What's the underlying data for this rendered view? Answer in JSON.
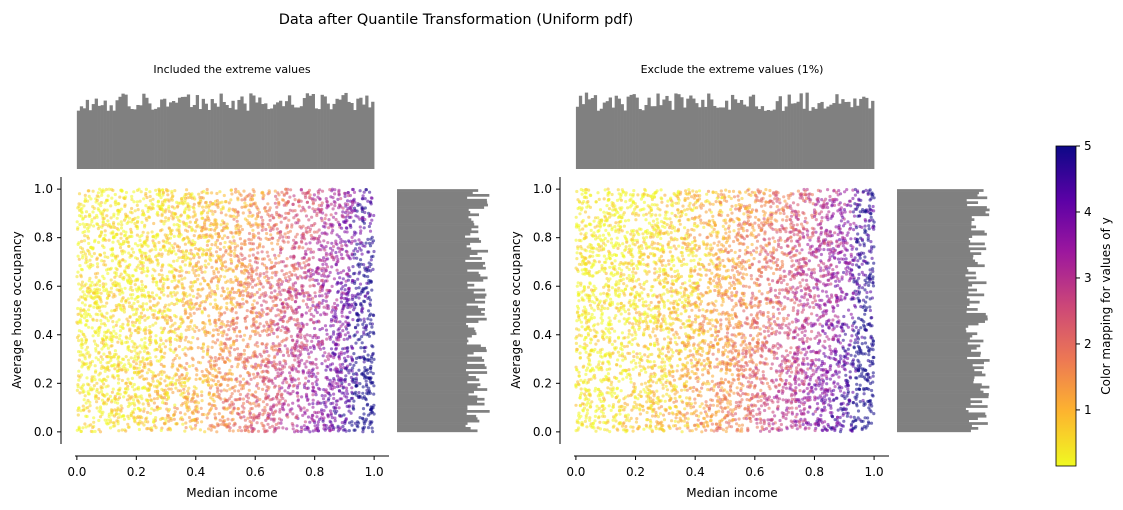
{
  "figure": {
    "title": "Data after Quantile Transformation (Uniform pdf)",
    "colorbar": {
      "label": "Color mapping for values of y",
      "ticks": [
        "1",
        "2",
        "3",
        "4",
        "5"
      ],
      "range": [
        0.15,
        5.0
      ],
      "colormap": "plasma_r",
      "colors": [
        "#f0f921",
        "#fdb42f",
        "#ed7953",
        "#cc4778",
        "#9c179e",
        "#5c01a6",
        "#0d0887"
      ]
    }
  },
  "chart_data": [
    {
      "type": "scatter",
      "title": "Included the extreme values",
      "xlabel": "Median income",
      "ylabel": "Average house occupancy",
      "xlim": [
        -0.05,
        1.05
      ],
      "ylim": [
        -0.05,
        1.05
      ],
      "xticks": [
        "0.0",
        "0.2",
        "0.4",
        "0.6",
        "0.8",
        "1.0"
      ],
      "yticks": [
        "0.0",
        "0.2",
        "0.4",
        "0.6",
        "0.8",
        "1.0"
      ],
      "points": 20640,
      "point_alpha": 0.5,
      "marginal_histograms": {
        "x": {
          "bins": 100,
          "color": "#808080"
        },
        "y": {
          "bins": 100,
          "color": "#808080"
        }
      },
      "x_range": [
        0.0,
        1.0
      ],
      "y_range": [
        0.0,
        1.0
      ]
    },
    {
      "type": "scatter",
      "title": "Exclude the extreme values (1%)",
      "xlabel": "Median income",
      "ylabel": "Average house occupancy",
      "xlim": [
        -0.05,
        1.05
      ],
      "ylim": [
        -0.05,
        1.05
      ],
      "xticks": [
        "0.0",
        "0.2",
        "0.4",
        "0.6",
        "0.8",
        "1.0"
      ],
      "yticks": [
        "0.0",
        "0.2",
        "0.4",
        "0.6",
        "0.8",
        "1.0"
      ],
      "points": 20229,
      "point_alpha": 0.5,
      "marginal_histograms": {
        "x": {
          "bins": 100,
          "color": "#808080"
        },
        "y": {
          "bins": 100,
          "color": "#808080"
        }
      },
      "x_range": [
        0.0,
        1.0
      ],
      "y_range": [
        0.0,
        1.0
      ]
    }
  ]
}
